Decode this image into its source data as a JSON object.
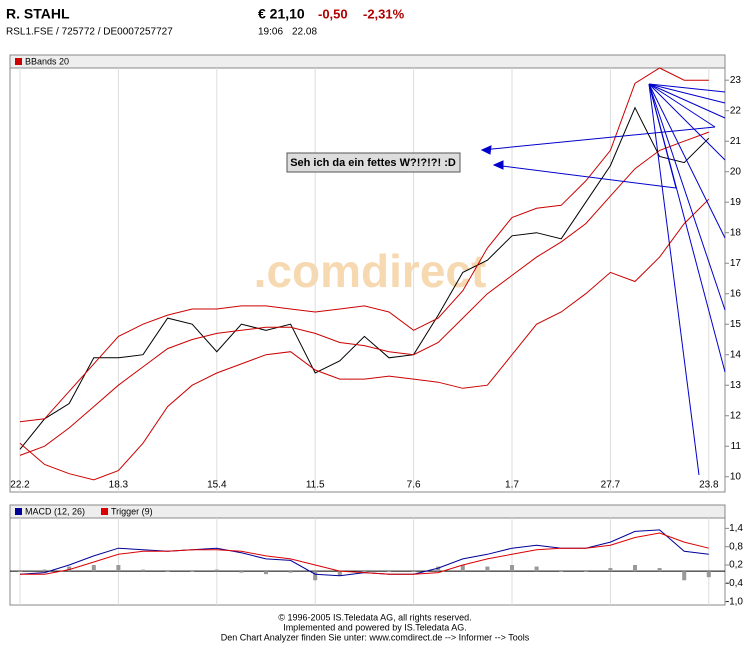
{
  "header": {
    "name": "R. STAHL",
    "ids": "RSL1.FSE  /  725772  /  DE0007257727",
    "price": "€ 21,10",
    "change": "-0,50",
    "change_pct": "-2,31%",
    "time": "19:06",
    "date": "22.08"
  },
  "annotation": "Seh ich da ein fettes W?!?!?! :D",
  "watermark": ".comdirect",
  "footer": [
    "© 1996-2005 IS.Teledata AG, all rights reserved.",
    "Implemented and powered by IS.Teledata AG.",
    "Den Chart Analyzer finden Sie unter: www.comdirect.de --> Informer --> Tools"
  ],
  "chart_data": [
    {
      "type": "line",
      "legend": "BBands 20",
      "categories": [
        "22.2",
        null,
        null,
        null,
        "18.3",
        null,
        null,
        null,
        "15.4",
        null,
        null,
        null,
        "11.5",
        null,
        null,
        null,
        "7.6",
        null,
        null,
        null,
        "1.7",
        null,
        null,
        null,
        "27.7",
        null,
        null,
        null,
        "23.8"
      ],
      "ylim": [
        9.5,
        23.4
      ],
      "yticks": [
        10,
        11,
        12,
        13,
        14,
        15,
        16,
        17,
        18,
        19,
        20,
        21,
        22,
        23
      ],
      "grid": true,
      "series": [
        {
          "color": "#000000",
          "values": [
            10.9,
            11.9,
            12.4,
            13.9,
            13.9,
            14.0,
            15.2,
            15.0,
            14.1,
            15.0,
            14.8,
            15.0,
            13.4,
            13.8,
            14.6,
            13.9,
            14.0,
            15.3,
            16.7,
            17.1,
            17.9,
            18.0,
            17.8,
            19.0,
            20.2,
            22.1,
            20.5,
            20.3,
            21.1
          ]
        },
        {
          "color": "#cc0000",
          "values": [
            11.8,
            11.9,
            12.8,
            13.7,
            14.6,
            15.0,
            15.3,
            15.5,
            15.5,
            15.6,
            15.6,
            15.5,
            15.4,
            15.5,
            15.6,
            15.4,
            14.8,
            15.2,
            16.1,
            17.5,
            18.5,
            18.8,
            18.9,
            19.7,
            20.7,
            22.9,
            23.4,
            23.0,
            23.0
          ]
        },
        {
          "color": "#cc0000",
          "values": [
            10.7,
            11.0,
            11.6,
            12.3,
            13.0,
            13.6,
            14.2,
            14.5,
            14.7,
            14.8,
            14.9,
            14.9,
            14.7,
            14.4,
            14.3,
            14.1,
            14.0,
            14.4,
            15.2,
            16.0,
            16.6,
            17.2,
            17.7,
            18.3,
            19.2,
            20.1,
            20.7,
            21.0,
            21.3
          ]
        },
        {
          "color": "#cc0000",
          "values": [
            11.1,
            10.4,
            10.1,
            9.9,
            10.2,
            11.1,
            12.3,
            13.0,
            13.4,
            13.7,
            14.0,
            14.1,
            13.5,
            13.2,
            13.2,
            13.3,
            13.2,
            13.1,
            12.9,
            13.0,
            14.0,
            15.0,
            15.4,
            16.0,
            16.7,
            16.4,
            17.2,
            18.3,
            19.1
          ]
        }
      ]
    },
    {
      "type": "line",
      "ylim": [
        -1.11,
        1.74
      ],
      "yticks": [
        {
          "value": 1.4,
          "label": "1,4"
        },
        {
          "value": 0.8,
          "label": "0,8"
        },
        {
          "value": 0.2,
          "label": "0,2"
        },
        {
          "value": -0.4,
          "label": "-0,4"
        },
        {
          "value": -1.0,
          "label": "-1,0"
        }
      ],
      "series": [
        {
          "name": "MACD (12, 26)",
          "color": "#000099",
          "values": [
            -0.1,
            -0.05,
            0.2,
            0.5,
            0.75,
            0.7,
            0.65,
            0.7,
            0.75,
            0.6,
            0.4,
            0.35,
            -0.1,
            -0.15,
            -0.05,
            -0.1,
            -0.1,
            0.1,
            0.4,
            0.55,
            0.75,
            0.85,
            0.75,
            0.75,
            0.95,
            1.3,
            1.35,
            0.65,
            0.55
          ]
        },
        {
          "name": "Trigger (9)",
          "color": "#dd0000",
          "values": [
            -0.1,
            -0.1,
            0.05,
            0.3,
            0.55,
            0.65,
            0.65,
            0.7,
            0.7,
            0.65,
            0.5,
            0.4,
            0.2,
            0.0,
            -0.05,
            -0.1,
            -0.1,
            -0.05,
            0.2,
            0.4,
            0.55,
            0.7,
            0.75,
            0.75,
            0.85,
            1.1,
            1.25,
            0.95,
            0.75
          ]
        }
      ],
      "histogram": {
        "color": "#999999",
        "values": [
          0,
          0.05,
          0.15,
          0.2,
          0.2,
          0.05,
          0,
          0,
          0.05,
          -0.05,
          -0.1,
          -0.05,
          -0.3,
          -0.15,
          0,
          0,
          0,
          0.15,
          0.2,
          0.15,
          0.2,
          0.15,
          0,
          0,
          0.1,
          0.2,
          0.1,
          -0.3,
          -0.2
        ]
      }
    }
  ]
}
